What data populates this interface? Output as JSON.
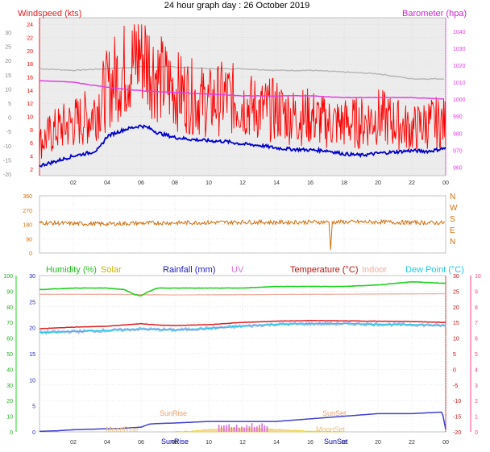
{
  "title": "24 hour graph day : 26 October 2019",
  "x_ticks": [
    "02",
    "04",
    "06",
    "08",
    "10",
    "12",
    "14",
    "16",
    "18",
    "20",
    "22",
    "00"
  ],
  "colors": {
    "plot_bg": "#ececec",
    "grid": "#cfcfcf",
    "wind": "#ff0000",
    "wind_avg": "#0000cc",
    "baro": "#e040e0",
    "baro_old": "#b8b8b8",
    "dir": "#d07010",
    "humidity": "#20d020",
    "solar": "#e8d000",
    "rain": "#4040d0",
    "uv": "#e070e0",
    "temp": "#e02020",
    "indoor": "#f0b0a0",
    "dew": "#20c8e8",
    "dew_band": "#a8b8f0",
    "right_axis_pink": "#ff4080"
  },
  "panels": {
    "wind": {
      "left_label": "Windspeed (kts)",
      "right_label": "Barometer (hpa)",
      "outer_ticks": [
        "30",
        "25",
        "20",
        "15",
        "10",
        "5",
        "0",
        "-5",
        "-10",
        "-15",
        "-20"
      ],
      "inner_ticks": [
        "24",
        "22",
        "20",
        "18",
        "16",
        "14",
        "12",
        "10",
        "8",
        "6",
        "4",
        "2"
      ],
      "right_ticks": [
        "1040",
        "1030",
        "1020",
        "1010",
        "1000",
        "990",
        "980",
        "970",
        "960"
      ]
    },
    "direction": {
      "left_ticks": [
        "360",
        "270",
        "180",
        "90",
        "0"
      ],
      "right_ticks": [
        "N",
        "W",
        "S",
        "E",
        "N"
      ]
    },
    "multi": {
      "legend": {
        "humidity": "Humidity (%)",
        "solar": "Solar",
        "rainfall": "Rainfall (mm)",
        "uv": "UV",
        "temperature": "Temperature (°C)",
        "indoor": "Indoor",
        "dewpoint": "Dew Point (°C)"
      },
      "far_left_ticks": [
        "100",
        "90",
        "80",
        "70",
        "60",
        "50",
        "40",
        "30",
        "20",
        "10",
        "0"
      ],
      "left_ticks": [
        "30",
        "25",
        "20",
        "15",
        "10",
        "5",
        "0"
      ],
      "right_ticks": [
        "30",
        "25",
        "20",
        "15",
        "10",
        "5",
        "0",
        "-5",
        "-10",
        "-15",
        "-20"
      ],
      "far_right_ticks": [
        "10",
        "9",
        "8",
        "7",
        "6",
        "5",
        "4",
        "3",
        "2",
        "1",
        "0"
      ],
      "annotations": {
        "sunrise": "SunRise",
        "sunset": "SunSet",
        "moonrise": "MoonRise",
        "moonset": "MoonSet",
        "sunrise_axis": "SunRise",
        "sunset_axis": "SunSet"
      }
    }
  },
  "chart_data": [
    {
      "type": "line",
      "title": "24 hour graph day : 26 October 2019",
      "x_unit": "hours",
      "xlim": [
        0,
        24
      ],
      "series": [
        {
          "name": "Windspeed (kts)",
          "axis": "wind_kts",
          "x": [
            0,
            1,
            2,
            3,
            3.5,
            4,
            4.5,
            5,
            5.5,
            6,
            6.5,
            7,
            8,
            9,
            10,
            11,
            12,
            13,
            14,
            15,
            16,
            17,
            18,
            19,
            20,
            21,
            22,
            23,
            24
          ],
          "y": [
            6,
            8,
            9,
            10,
            12,
            14,
            16,
            17,
            18,
            20,
            18,
            16,
            14,
            13,
            12,
            13,
            12,
            11,
            11,
            10,
            10,
            9,
            9,
            9,
            10,
            9,
            8,
            9,
            9
          ]
        },
        {
          "name": "Windspeed average",
          "axis": "wind_kts",
          "x": [
            0,
            1,
            2,
            3,
            3.5,
            4,
            4.5,
            5,
            5.5,
            6,
            6.5,
            7,
            8,
            9,
            10,
            11,
            12,
            13,
            14,
            15,
            16,
            17,
            18,
            19,
            20,
            21,
            22,
            23,
            24
          ],
          "y": [
            2.5,
            3.2,
            4,
            4.5,
            5,
            7,
            7.5,
            8,
            8.3,
            8.6,
            8.2,
            7.5,
            6.8,
            6.5,
            6.3,
            6.2,
            5.8,
            5.6,
            5.2,
            5.0,
            4.9,
            4.8,
            4.3,
            4.1,
            4.4,
            4.6,
            4.8,
            4.7,
            5.2
          ]
        },
        {
          "name": "Barometer (hpa)",
          "axis": "baro",
          "x": [
            0,
            2,
            4,
            6,
            8,
            10,
            12,
            14,
            16,
            18,
            20,
            22,
            24
          ],
          "y": [
            1011,
            1010,
            1007,
            1005,
            1004,
            1003,
            1002,
            1002,
            1002,
            1001,
            1001,
            1001,
            1000
          ]
        },
        {
          "name": "Barometer (previous)",
          "axis": "baro",
          "x": [
            0,
            2,
            4,
            6,
            8,
            10,
            12,
            14,
            16,
            18,
            20,
            22,
            24
          ],
          "y": [
            1018,
            1017,
            1018,
            1019,
            1019,
            1018,
            1018,
            1017,
            1017,
            1016,
            1015,
            1012,
            1012
          ]
        }
      ],
      "axes": {
        "wind_kts": {
          "label": "Windspeed (kts)",
          "ylim": [
            1,
            25
          ],
          "ticks": [
            2,
            4,
            6,
            8,
            10,
            12,
            14,
            16,
            18,
            20,
            22,
            24
          ]
        },
        "baro": {
          "label": "Barometer (hpa)",
          "ylim": [
            955,
            1048
          ],
          "ticks": [
            960,
            970,
            980,
            990,
            1000,
            1010,
            1020,
            1030,
            1040
          ]
        }
      }
    },
    {
      "type": "line",
      "title": "",
      "x_unit": "hours",
      "xlim": [
        0,
        24
      ],
      "ylim": [
        0,
        360
      ],
      "series": [
        {
          "name": "Wind direction",
          "x": [
            0,
            2,
            4,
            6,
            8,
            10,
            12,
            14,
            16,
            17.1,
            17.2,
            17.3,
            18,
            20,
            22,
            24
          ],
          "y": [
            190,
            185,
            183,
            188,
            190,
            192,
            195,
            193,
            195,
            195,
            20,
            195,
            195,
            195,
            192,
            190
          ]
        }
      ]
    },
    {
      "type": "line",
      "title": "",
      "x_unit": "hours",
      "xlim": [
        0,
        24
      ],
      "series": [
        {
          "name": "Humidity (%)",
          "axis": "pct",
          "x": [
            0,
            2,
            4,
            5,
            5.6,
            6,
            6.5,
            7,
            8,
            10,
            12,
            14,
            16,
            18,
            20,
            21,
            22,
            24
          ],
          "y": [
            91,
            92,
            92,
            91,
            88,
            87,
            90,
            92,
            92,
            92,
            92,
            93,
            93,
            93,
            94,
            95,
            96,
            95
          ]
        },
        {
          "name": "Temperature (°C)",
          "axis": "temp",
          "x": [
            0,
            2,
            4,
            6,
            7,
            8,
            10,
            12,
            14,
            16,
            18,
            20,
            22,
            24
          ],
          "y": [
            13,
            13.5,
            13.8,
            14.6,
            14.2,
            14,
            14.3,
            15.0,
            15.4,
            15.6,
            15.5,
            15.4,
            15.3,
            15.0
          ]
        },
        {
          "name": "Indoor",
          "axis": "temp",
          "x": [
            0,
            4,
            8,
            12,
            16,
            20,
            24
          ],
          "y": [
            24,
            24,
            23.8,
            23.9,
            24,
            24.1,
            24.2
          ]
        },
        {
          "name": "Dew Point (°C)",
          "axis": "temp",
          "x": [
            0,
            2,
            4,
            6,
            8,
            10,
            12,
            14,
            16,
            18,
            20,
            22,
            24
          ],
          "y": [
            11.8,
            12.1,
            12.4,
            12.9,
            12.6,
            13.1,
            13.8,
            14.4,
            14.6,
            14.6,
            14.4,
            14.3,
            14.0
          ]
        },
        {
          "name": "Rainfall (mm)",
          "axis": "rain",
          "x": [
            0,
            1,
            2,
            3,
            4,
            5,
            6,
            6.5,
            7,
            8,
            10,
            11,
            12,
            14,
            16,
            18,
            20,
            22,
            23.8,
            24
          ],
          "y": [
            0.1,
            0.2,
            0.4,
            0.5,
            0.6,
            0.7,
            0.9,
            1.5,
            1.6,
            1.7,
            2.0,
            2.0,
            2.0,
            2.0,
            2.5,
            3.0,
            3.5,
            3.5,
            3.8,
            0.5
          ]
        },
        {
          "name": "Solar",
          "axis": "pct",
          "x": [
            8,
            9,
            10,
            11,
            12,
            13,
            14,
            15,
            16,
            17,
            18
          ],
          "y": [
            0,
            0.5,
            1.5,
            2.0,
            2.2,
            2.0,
            1.5,
            1.0,
            0.5,
            0.2,
            0
          ]
        },
        {
          "name": "UV",
          "axis": "uv",
          "x": [
            10,
            10.6,
            11,
            11.5,
            12,
            12.5,
            13,
            13.5,
            14
          ],
          "y": [
            0,
            0.5,
            0.5,
            0.4,
            0.4,
            0.5,
            0.5,
            0.4,
            0
          ]
        }
      ],
      "axes": {
        "pct": {
          "label": "Humidity (%)",
          "ylim": [
            0,
            100
          ]
        },
        "rain": {
          "label": "Rainfall (mm)",
          "ylim": [
            0,
            30
          ]
        },
        "temp": {
          "label": "Temperature (°C)",
          "ylim": [
            -20,
            30
          ]
        },
        "uv": {
          "label": "UV",
          "ylim": [
            0,
            10
          ]
        }
      }
    }
  ]
}
